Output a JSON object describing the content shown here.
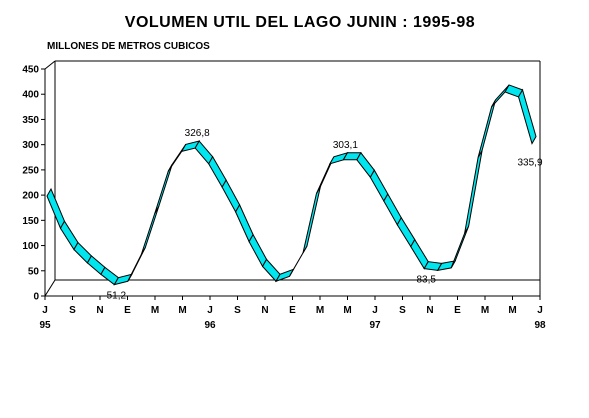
{
  "chart_data": {
    "type": "line",
    "style": "3d-ribbon",
    "title": "VOLUMEN UTIL DEL LAGO JUNIN : 1995-98",
    "ylabel": "MILLONES DE METROS CUBICOS",
    "xlabel": "",
    "ylim": [
      0,
      450
    ],
    "yticks": [
      0,
      50,
      100,
      150,
      200,
      250,
      300,
      350,
      400,
      450
    ],
    "grid": false,
    "legend": "none",
    "ribbon_color": "#00e5ee",
    "x_tick_labels": [
      "J",
      "S",
      "N",
      "E",
      "M",
      "M",
      "J",
      "S",
      "N",
      "E",
      "M",
      "M",
      "J",
      "S",
      "N",
      "E",
      "M",
      "M",
      "J"
    ],
    "year_labels": [
      {
        "tick_index": 0,
        "label": "95"
      },
      {
        "tick_index": 6,
        "label": "96"
      },
      {
        "tick_index": 12,
        "label": "97"
      },
      {
        "tick_index": 18,
        "label": "98"
      }
    ],
    "x": [
      0,
      1,
      2,
      3,
      4,
      5,
      6,
      7,
      8,
      9,
      10,
      11,
      12,
      13,
      14,
      15,
      16,
      17,
      18,
      19,
      20,
      21,
      22,
      23,
      24,
      25,
      26,
      27,
      28,
      29,
      30,
      31,
      32,
      33,
      34,
      35,
      36
    ],
    "values": [
      230,
      165,
      122,
      95,
      72,
      51.2,
      58,
      112,
      195,
      280,
      320,
      326.8,
      295,
      248,
      198,
      138,
      88,
      58,
      68,
      115,
      235,
      295,
      303.1,
      303.1,
      268,
      220,
      172,
      128,
      83.5,
      80,
      85,
      155,
      308,
      410,
      440,
      430,
      335.9
    ],
    "data_labels": [
      {
        "index": 5,
        "text": "51,2"
      },
      {
        "index": 11,
        "text": "326,8"
      },
      {
        "index": 22,
        "text": "303,1"
      },
      {
        "index": 28,
        "text": "83,5"
      },
      {
        "index": 36,
        "text": "335,9"
      }
    ]
  }
}
